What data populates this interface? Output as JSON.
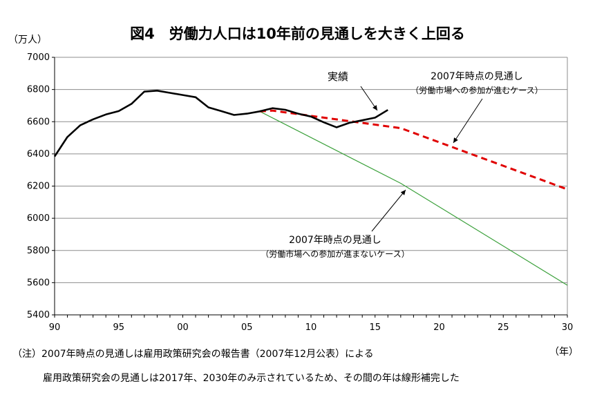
{
  "chart_data": {
    "type": "line",
    "title": "図4　労働力人口は10年前の見通しを大きく上回る",
    "ylabel": "（万人）",
    "xunit": "（年）",
    "xlim": [
      1990,
      2030
    ],
    "ylim": [
      5400,
      7000
    ],
    "yticks": [
      5400,
      5600,
      5800,
      6000,
      6200,
      6400,
      6600,
      6800,
      7000
    ],
    "xticks": [
      {
        "value": 1990,
        "label": "90"
      },
      {
        "value": 1995,
        "label": "95"
      },
      {
        "value": 2000,
        "label": "00"
      },
      {
        "value": 2005,
        "label": "05"
      },
      {
        "value": 2010,
        "label": "10"
      },
      {
        "value": 2015,
        "label": "15"
      },
      {
        "value": 2020,
        "label": "20"
      },
      {
        "value": 2025,
        "label": "25"
      },
      {
        "value": 2030,
        "label": "30"
      }
    ],
    "grid": true,
    "series": [
      {
        "name": "実績",
        "color": "#000000",
        "style": "solid",
        "x": [
          1990,
          1991,
          1992,
          1993,
          1994,
          1995,
          1996,
          1997,
          1998,
          1999,
          2000,
          2001,
          2002,
          2003,
          2004,
          2005,
          2006,
          2007,
          2008,
          2009,
          2010,
          2011,
          2012,
          2013,
          2014,
          2015,
          2016
        ],
        "y": [
          6384,
          6505,
          6578,
          6615,
          6645,
          6666,
          6711,
          6787,
          6793,
          6779,
          6766,
          6752,
          6689,
          6666,
          6642,
          6650,
          6664,
          6684,
          6674,
          6650,
          6632,
          6596,
          6565,
          6593,
          6609,
          6625,
          6673
        ]
      },
      {
        "name": "2007年時点の見通し（労働市場への参加が進むケース）",
        "color": "#e00000",
        "style": "dashed",
        "x": [
          2006,
          2007,
          2017,
          2030
        ],
        "y": [
          6664,
          6669,
          6560,
          6180
        ]
      },
      {
        "name": "2007年時点の見通し（労働市場への参加が進まないケース）",
        "color": "#3aa03a",
        "style": "solid-thin",
        "x": [
          2006,
          2017,
          2030
        ],
        "y": [
          6664,
          6217,
          5584
        ]
      }
    ],
    "annotations": {
      "actual": "実績",
      "advancing_title": "2007年時点の見通し",
      "advancing_sub": "（労働市場への参加が進むケース）",
      "stalled_title": "2007年時点の見通し",
      "stalled_sub": "（労働市場への参加が進まないケース）"
    }
  },
  "notes": {
    "line1": "（注）2007年時点の見通しは雇用政策研究会の報告書（2007年12月公表）による",
    "line2": "雇用政策研究会の見通しは2017年、2030年のみ示されているため、その間の年は線形補完した"
  }
}
